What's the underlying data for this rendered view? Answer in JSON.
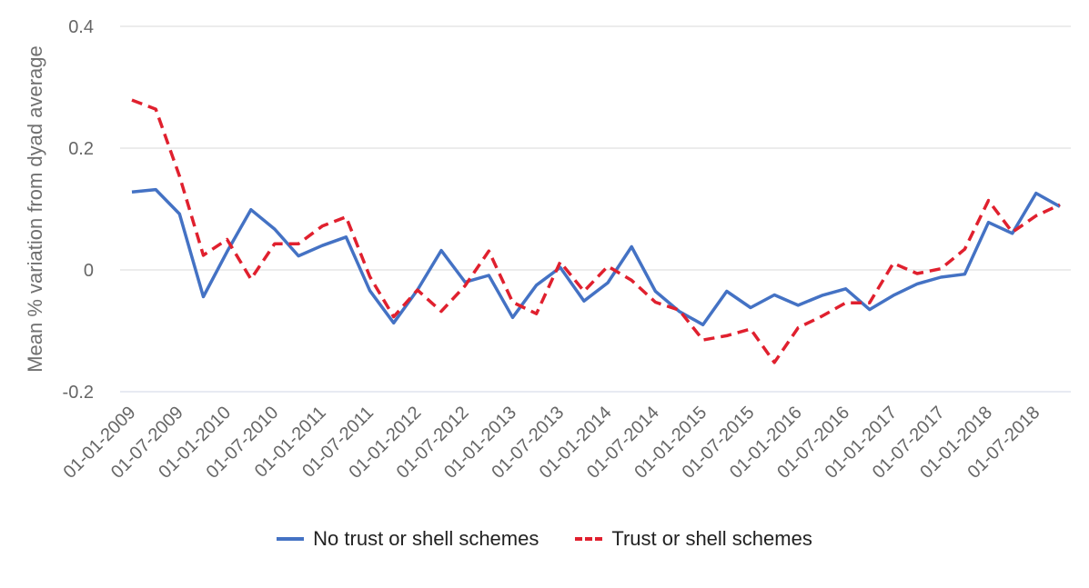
{
  "chart_data": {
    "type": "line",
    "title": "",
    "xlabel": "",
    "ylabel": "Mean % variation from dyad average",
    "ylim": [
      -0.2,
      0.4
    ],
    "yticks": [
      -0.2,
      0,
      0.2,
      0.4
    ],
    "ytick_labels": [
      "-0.2",
      "0",
      "0.2",
      "0.4"
    ],
    "x_dates": [
      "2009-01",
      "2009-04",
      "2009-07",
      "2009-10",
      "2010-01",
      "2010-04",
      "2010-07",
      "2010-10",
      "2011-01",
      "2011-04",
      "2011-07",
      "2011-10",
      "2012-01",
      "2012-04",
      "2012-07",
      "2012-10",
      "2013-01",
      "2013-04",
      "2013-07",
      "2013-10",
      "2014-01",
      "2014-04",
      "2014-07",
      "2014-10",
      "2015-01",
      "2015-04",
      "2015-07",
      "2015-10",
      "2016-01",
      "2016-04",
      "2016-07",
      "2016-10",
      "2017-01",
      "2017-04",
      "2017-07",
      "2017-10",
      "2018-01",
      "2018-04",
      "2018-07",
      "2018-10"
    ],
    "xtick_labels": [
      "01-01-2009",
      "01-07-2009",
      "01-01-2010",
      "01-07-2010",
      "01-01-2011",
      "01-07-2011",
      "01-01-2012",
      "01-07-2012",
      "01-01-2013",
      "01-07-2013",
      "01-01-2014",
      "01-07-2014",
      "01-01-2015",
      "01-07-2015",
      "01-01-2016",
      "01-07-2016",
      "01-01-2017",
      "01-07-2017",
      "01-01-2018",
      "01-07-2018"
    ],
    "series": [
      {
        "name": "No trust or shell schemes",
        "color": "#4472c4",
        "style": "solid",
        "values": [
          0.128,
          0.132,
          0.092,
          -0.044,
          0.03,
          0.099,
          0.067,
          0.023,
          0.04,
          0.054,
          -0.034,
          -0.087,
          -0.033,
          0.032,
          -0.02,
          -0.009,
          -0.078,
          -0.025,
          0.004,
          -0.051,
          -0.021,
          0.038,
          -0.035,
          -0.068,
          -0.09,
          -0.035,
          -0.062,
          -0.041,
          -0.058,
          -0.042,
          -0.031,
          -0.065,
          -0.042,
          -0.023,
          -0.012,
          -0.007,
          0.078,
          0.06,
          0.126,
          0.104
        ]
      },
      {
        "name": "Trust or shell schemes",
        "color": "#e0202e",
        "style": "dashed",
        "values": [
          0.279,
          0.264,
          0.154,
          0.024,
          0.05,
          -0.015,
          0.043,
          0.043,
          0.072,
          0.087,
          -0.011,
          -0.077,
          -0.033,
          -0.068,
          -0.026,
          0.031,
          -0.053,
          -0.072,
          0.013,
          -0.035,
          0.006,
          -0.017,
          -0.053,
          -0.066,
          -0.115,
          -0.108,
          -0.097,
          -0.152,
          -0.095,
          -0.076,
          -0.054,
          -0.054,
          0.011,
          -0.006,
          0.002,
          0.034,
          0.114,
          0.062,
          0.089,
          0.107
        ]
      }
    ],
    "legend_position": "bottom"
  }
}
